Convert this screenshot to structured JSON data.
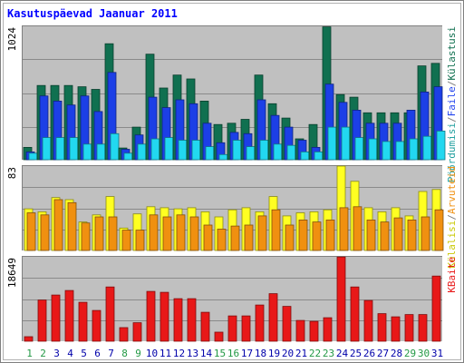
{
  "title": "Kasutuspäevad Jaanuar 2011",
  "colors": {
    "frame": "#7f7f7f",
    "background": "#ffffff",
    "plot": "#c0c0c0",
    "gridline": "#8a8a8a",
    "title": "#0000ff",
    "visits": "#107050",
    "files": "#1c3fe6",
    "hits": "#22d8f0",
    "pages": "#ffff22",
    "hosts": "#f09010",
    "kbytes": "#e81818",
    "weekday_label": "#0000aa",
    "weekend_label": "#229944"
  },
  "chart_data": [
    {
      "type": "bar",
      "panel": "top",
      "ymax_label": "1024",
      "legend": [
        {
          "label": "Pöördumisi",
          "color": "#22a0a0"
        },
        {
          "label": "/",
          "color": "#7f7f7f"
        },
        {
          "label": "Faile",
          "color": "#2244ee"
        },
        {
          "label": "/",
          "color": "#7f7f7f"
        },
        {
          "label": "Külastusi",
          "color": "#107050"
        }
      ],
      "categories": [
        1,
        2,
        3,
        4,
        5,
        6,
        7,
        8,
        9,
        10,
        11,
        12,
        13,
        14,
        15,
        16,
        17,
        18,
        19,
        20,
        21,
        22,
        23,
        24,
        25,
        26,
        27,
        28,
        29,
        30,
        31
      ],
      "ylim": [
        0,
        1024
      ],
      "series": [
        {
          "name": "Külastusi",
          "values": [
            95,
            570,
            570,
            570,
            560,
            540,
            890,
            90,
            250,
            810,
            550,
            650,
            620,
            450,
            270,
            280,
            310,
            650,
            430,
            320,
            160,
            270,
            1020,
            500,
            480,
            360,
            360,
            360,
            360,
            720,
            740
          ]
        },
        {
          "name": "Faile",
          "values": [
            60,
            490,
            450,
            420,
            490,
            370,
            670,
            80,
            190,
            480,
            400,
            460,
            430,
            280,
            130,
            210,
            200,
            460,
            340,
            250,
            150,
            95,
            580,
            440,
            380,
            280,
            280,
            280,
            380,
            520,
            560
          ]
        },
        {
          "name": "Pöördumisi",
          "values": [
            50,
            170,
            170,
            170,
            120,
            120,
            200,
            50,
            120,
            160,
            170,
            150,
            150,
            100,
            40,
            150,
            100,
            150,
            120,
            110,
            60,
            60,
            250,
            250,
            170,
            160,
            140,
            140,
            160,
            180,
            220
          ]
        }
      ]
    },
    {
      "type": "bar",
      "panel": "middle",
      "ymax_label": "83",
      "legend": [
        {
          "label": "Külalisi",
          "color": "#c8c800"
        },
        {
          "label": "/",
          "color": "#7f7f7f"
        },
        {
          "label": "Arvuteid",
          "color": "#f09010"
        }
      ],
      "categories": [
        1,
        2,
        3,
        4,
        5,
        6,
        7,
        8,
        9,
        10,
        11,
        12,
        13,
        14,
        15,
        16,
        17,
        18,
        19,
        20,
        21,
        22,
        23,
        24,
        25,
        26,
        27,
        28,
        29,
        30,
        31
      ],
      "ylim": [
        0,
        83
      ],
      "series": [
        {
          "name": "Külalisi",
          "values": [
            41,
            38,
            52,
            50,
            28,
            35,
            53,
            22,
            36,
            43,
            42,
            41,
            42,
            38,
            33,
            40,
            42,
            38,
            53,
            34,
            37,
            38,
            40,
            84,
            68,
            42,
            38,
            42,
            34,
            58,
            60
          ]
        },
        {
          "name": "Arvuteid",
          "values": [
            37,
            35,
            50,
            47,
            27,
            33,
            33,
            20,
            20,
            35,
            33,
            35,
            33,
            25,
            21,
            24,
            25,
            34,
            40,
            25,
            30,
            28,
            30,
            42,
            43,
            30,
            28,
            32,
            30,
            33,
            40
          ]
        }
      ]
    },
    {
      "type": "bar",
      "panel": "bottom",
      "ymax_label": "18649",
      "legend": [
        {
          "label": "KBaite",
          "color": "#e81818"
        }
      ],
      "categories": [
        1,
        2,
        3,
        4,
        5,
        6,
        7,
        8,
        9,
        10,
        11,
        12,
        13,
        14,
        15,
        16,
        17,
        18,
        19,
        20,
        21,
        22,
        23,
        24,
        25,
        26,
        27,
        28,
        29,
        30,
        31
      ],
      "ylim": [
        0,
        18649
      ],
      "series": [
        {
          "name": "KBaite",
          "values": [
            1000,
            9100,
            10200,
            11200,
            8600,
            6800,
            12000,
            3000,
            4100,
            11000,
            10800,
            9400,
            9400,
            6400,
            2000,
            5600,
            5600,
            8000,
            10500,
            7700,
            4600,
            4400,
            5200,
            18600,
            12000,
            9000,
            6100,
            5400,
            5900,
            5900,
            14400
          ]
        }
      ]
    }
  ]
}
